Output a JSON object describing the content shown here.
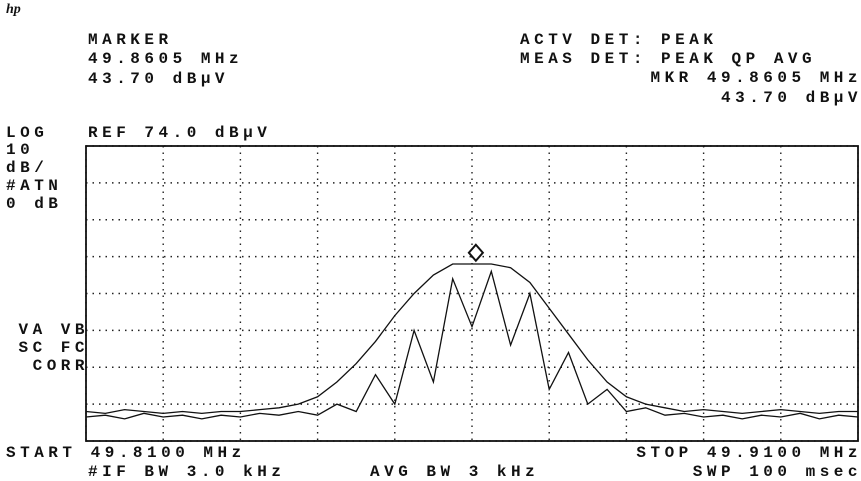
{
  "chart_data": {
    "type": "line",
    "logo": "hp",
    "annotations": {
      "marker_label": "MARKER",
      "marker_freq": "49.8605 MHz",
      "marker_level": "43.70 dBμV",
      "actv_det": "ACTV DET: PEAK",
      "meas_det": "MEAS DET: PEAK QP AVG",
      "mkr_freq": "MKR 49.8605 MHz",
      "mkr_level": "43.70 dBμV",
      "log": "LOG",
      "ref": "REF 74.0 dBμV",
      "scale_1": "10",
      "scale_2": "dB/",
      "atn_1": "#ATN",
      "atn_2": "0 dB",
      "va_vb": "VA VB",
      "sc_fc": "SC FC",
      "corr": "CORR",
      "start": "START 49.8100 MHz",
      "stop": "STOP 49.9100 MHz",
      "if_bw": "#IF BW 3.0 kHz",
      "avg_bw": "AVG BW 3 kHz",
      "swp": "SWP 100 msec"
    },
    "x": [
      49.81,
      49.8125,
      49.815,
      49.8175,
      49.82,
      49.8225,
      49.825,
      49.8275,
      49.83,
      49.8325,
      49.835,
      49.8375,
      49.84,
      49.8425,
      49.845,
      49.8475,
      49.85,
      49.8525,
      49.855,
      49.8575,
      49.86,
      49.8625,
      49.865,
      49.8675,
      49.87,
      49.8725,
      49.875,
      49.8775,
      49.88,
      49.8825,
      49.885,
      49.8875,
      49.89,
      49.8925,
      49.895,
      49.8975,
      49.9,
      49.9025,
      49.905,
      49.9075,
      49.91
    ],
    "series": [
      {
        "color": "#111111",
        "values": [
          2,
          1.5,
          2.5,
          2,
          1.5,
          2,
          1.5,
          2,
          2,
          2.5,
          3,
          4,
          6,
          10,
          15,
          21,
          28,
          34,
          39,
          42,
          42,
          42,
          41,
          37,
          30,
          23,
          16,
          10,
          6,
          4,
          3,
          2,
          2.5,
          2,
          1.5,
          2,
          2.5,
          2,
          1.5,
          2,
          2
        ]
      },
      {
        "color": "#111111",
        "values": [
          0.5,
          1,
          0,
          1.5,
          0.5,
          1,
          0,
          1,
          0.5,
          1.5,
          1,
          2,
          1,
          4,
          2,
          12,
          4,
          24,
          10,
          38,
          25,
          40,
          20,
          34,
          8,
          18,
          4,
          8,
          2,
          3,
          1,
          1.5,
          0.5,
          1,
          0,
          1,
          0.5,
          1.5,
          0,
          1,
          0.5
        ]
      }
    ],
    "marker": {
      "x": 49.8605,
      "y": 43.7
    },
    "xlim": [
      49.81,
      49.91
    ],
    "ylim": [
      -6,
      74
    ],
    "xticks": [
      49.81,
      49.82,
      49.83,
      49.84,
      49.85,
      49.86,
      49.87,
      49.88,
      49.89,
      49.9,
      49.91
    ],
    "yticks": [
      -6,
      4,
      14,
      24,
      34,
      44,
      54,
      64,
      74
    ],
    "grid": true
  }
}
